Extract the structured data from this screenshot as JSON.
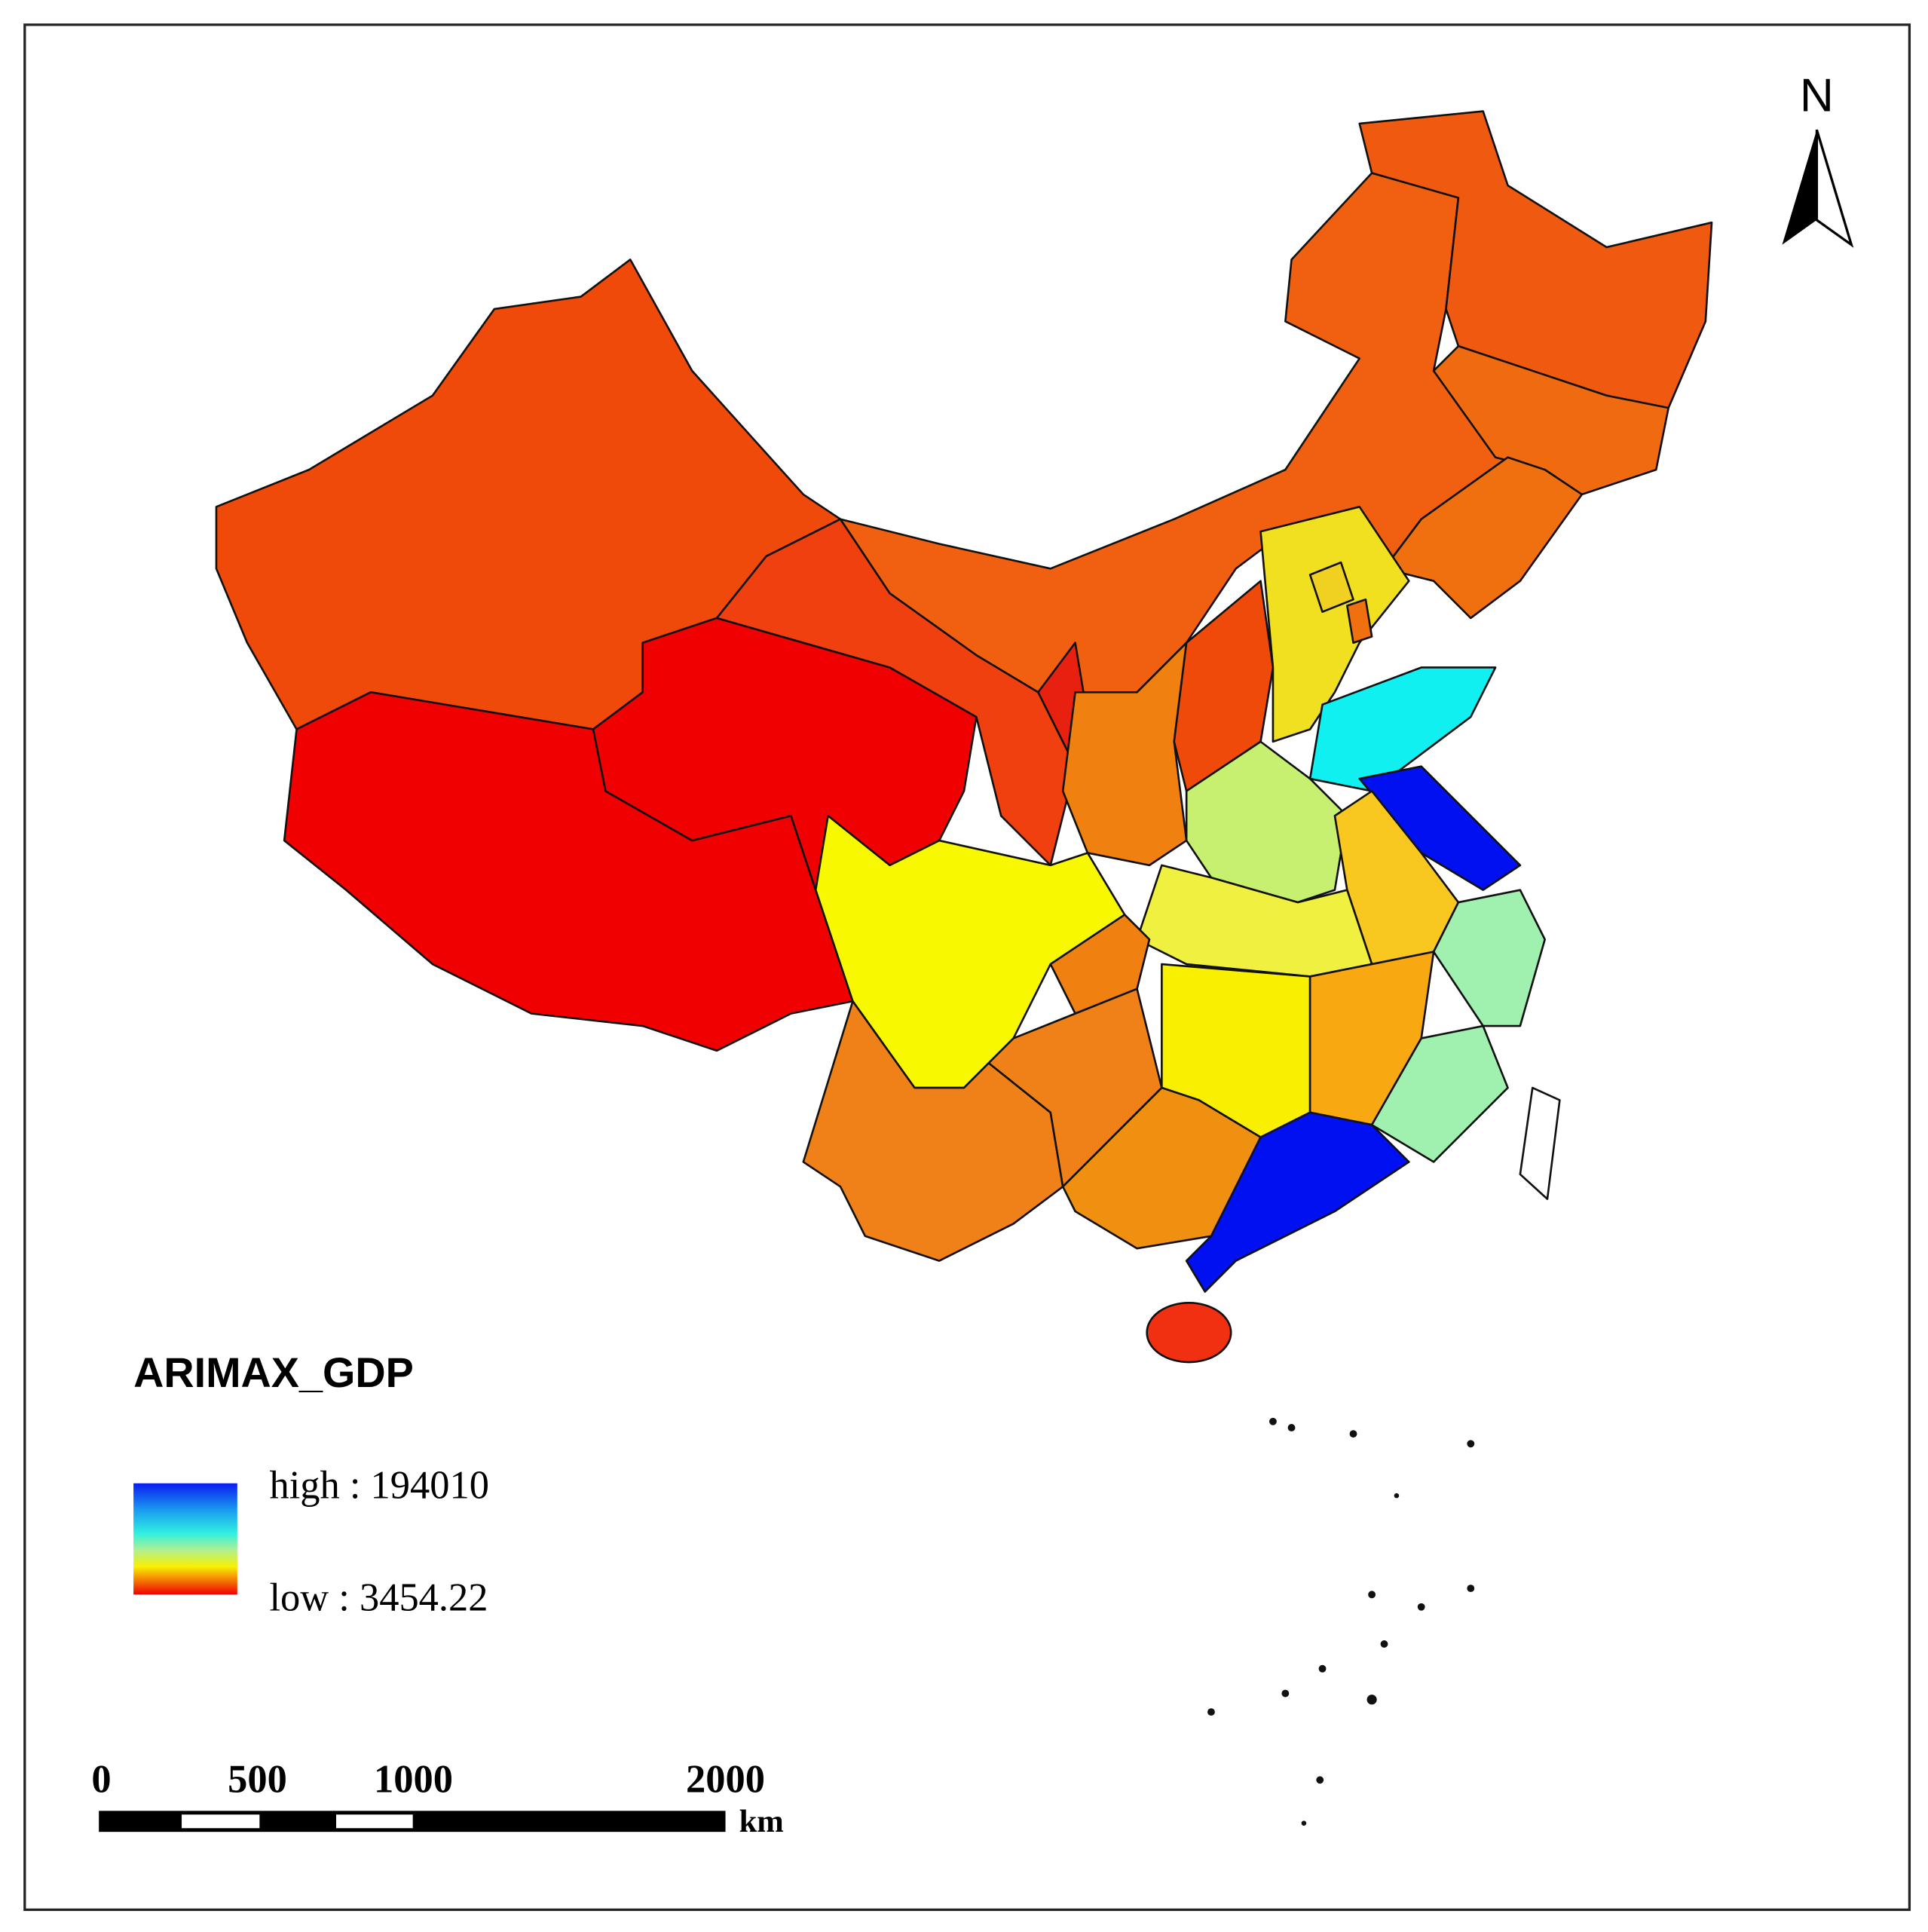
{
  "north_arrow": "N",
  "legend": {
    "title": "ARIMAX_GDP",
    "high": "high : 194010",
    "low": "low : 3454.22"
  },
  "scale_bar": {
    "ticks": [
      "0",
      "500",
      "1000",
      "2000"
    ],
    "unit": "km"
  }
}
